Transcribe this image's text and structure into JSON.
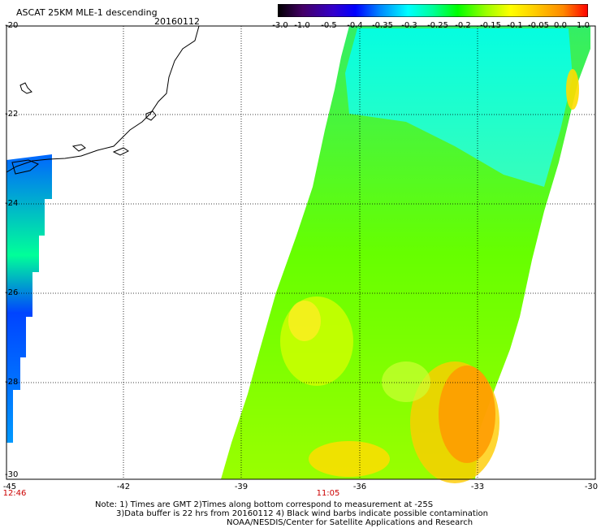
{
  "header": {
    "title": "ASCAT 25KM MLE-1 descending",
    "date": "20160112"
  },
  "colorbar": {
    "labels": [
      "-3.0",
      "-1.0",
      "-0.5",
      "-0.4",
      "-0.35",
      "-0.3",
      "-0.25",
      "-0.2",
      "-0.15",
      "-0.1",
      "-0.05",
      "0.0",
      "1.0"
    ]
  },
  "axes": {
    "lat_labels": [
      "-20",
      "-22",
      "-24",
      "-26",
      "-28",
      "-30"
    ],
    "lon_labels": [
      "-45",
      "-42",
      "-39",
      "-36",
      "-33",
      "-30"
    ]
  },
  "time_labels": {
    "left": "12:46",
    "middle": "11:05"
  },
  "footer": {
    "note_line1": "Note: 1) Times are GMT 2)Times along bottom correspond to measurement at -25S",
    "note_line2": "3)Data buffer is 22 hrs from 20160112 4) Black wind barbs indicate possible contamination",
    "note_line3": "NOAA/NESDIS/Center for Satellite Applications and Research"
  },
  "colors": {
    "background": "#ffffff",
    "time_label": "#cc0000",
    "grid": "#000000"
  }
}
